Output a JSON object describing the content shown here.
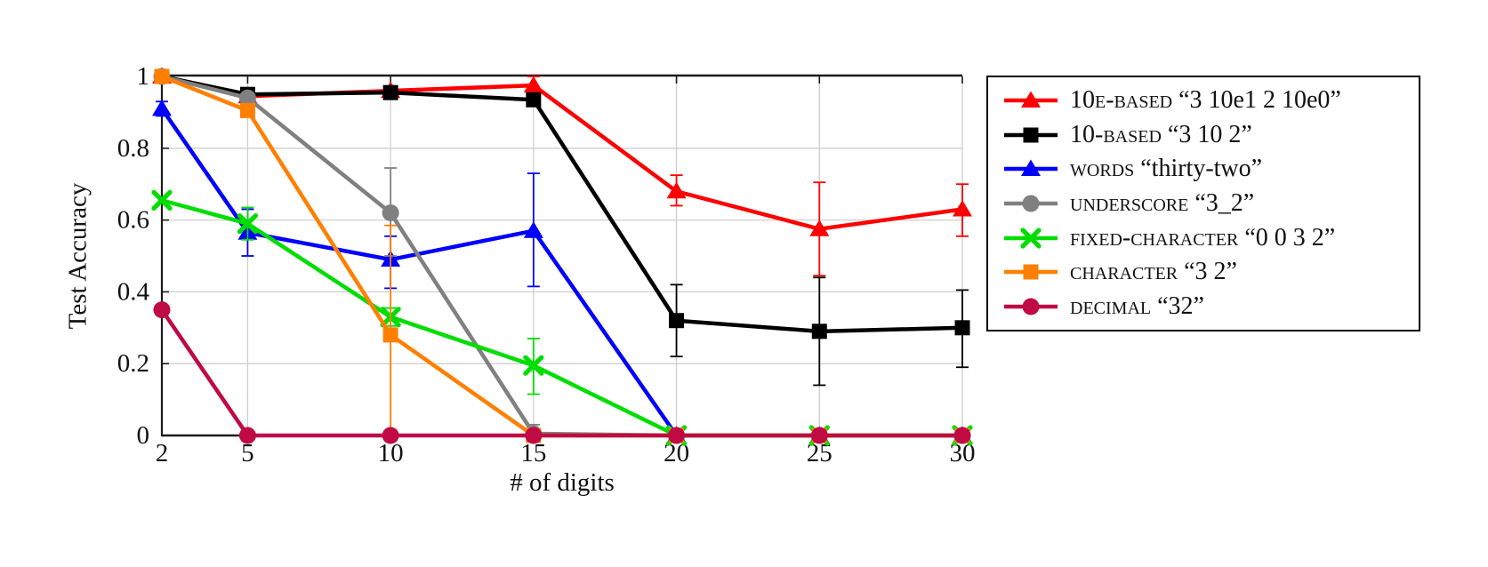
{
  "page": {
    "background": "#ffffff"
  },
  "chart_data": {
    "type": "line",
    "title": "",
    "xlabel": "# of digits",
    "ylabel": "Test Accuracy",
    "x": [
      2,
      5,
      10,
      15,
      20,
      25,
      30
    ],
    "xticks": [
      "2",
      "5",
      "10",
      "15",
      "20",
      "25",
      "30"
    ],
    "xtick_values": [
      2,
      5,
      10,
      15,
      20,
      25,
      30
    ],
    "yticks": [
      "0",
      "0.2",
      "0.4",
      "0.6",
      "0.8",
      "1"
    ],
    "ytick_values": [
      0,
      0.2,
      0.4,
      0.6,
      0.8,
      1
    ],
    "xlim": [
      2,
      30
    ],
    "ylim": [
      0,
      1
    ],
    "grid": "on",
    "grid_color": "#cfcfcf",
    "frame_color": "#1a1a1a",
    "legend_position": "outside right",
    "series": [
      {
        "name": "10e-based",
        "example": "“3 10e1 2 10e0”",
        "color": "#ff0000",
        "marker": "triangle",
        "values": [
          1.0,
          0.945,
          0.96,
          0.975,
          0.68,
          0.575,
          0.63
        ],
        "err_minus": [
          0,
          0,
          0,
          0.02,
          0.04,
          0.13,
          0.075
        ],
        "err_plus": [
          0,
          0,
          0,
          0.025,
          0.045,
          0.13,
          0.07
        ]
      },
      {
        "name": "10-based",
        "example": "“3 10 2”",
        "color": "#000000",
        "marker": "square",
        "values": [
          1.0,
          0.95,
          0.955,
          0.935,
          0.32,
          0.29,
          0.3
        ],
        "err_minus": [
          0,
          0,
          0,
          0,
          0.1,
          0.15,
          0.11
        ],
        "err_plus": [
          0,
          0,
          0,
          0,
          0.1,
          0.15,
          0.105
        ]
      },
      {
        "name": "words",
        "example": "“thirty-two”",
        "color": "#0000ff",
        "marker": "triangle",
        "values": [
          0.91,
          0.565,
          0.49,
          0.57,
          0,
          0,
          0
        ],
        "err_minus": [
          0.02,
          0.065,
          0.08,
          0.155,
          0,
          0,
          0
        ],
        "err_plus": [
          0.02,
          0.065,
          0.065,
          0.16,
          0,
          0,
          0
        ]
      },
      {
        "name": "underscore",
        "example": "“3_2”",
        "color": "#808080",
        "marker": "circle",
        "values": [
          1.0,
          0.94,
          0.62,
          0.005,
          0,
          0,
          0
        ],
        "err_minus": [
          0,
          0,
          0.12,
          0.005,
          0,
          0,
          0
        ],
        "err_plus": [
          0,
          0,
          0.125,
          0.025,
          0,
          0,
          0
        ]
      },
      {
        "name": "fixed-character",
        "example": "“0 0 3 2”",
        "color": "#00dd00",
        "marker": "x",
        "values": [
          0.655,
          0.59,
          0.33,
          0.195,
          0,
          0,
          0
        ],
        "err_minus": [
          0,
          0.045,
          0.025,
          0.08,
          0,
          0,
          0
        ],
        "err_plus": [
          0,
          0.045,
          0.025,
          0.075,
          0,
          0,
          0
        ]
      },
      {
        "name": "character",
        "example": "“3 2”",
        "color": "#ff8000",
        "marker": "square",
        "values": [
          1.0,
          0.905,
          0.28,
          0,
          0,
          0,
          0
        ],
        "err_minus": [
          0,
          0,
          0.28,
          0,
          0,
          0,
          0
        ],
        "err_plus": [
          0,
          0,
          0.305,
          0,
          0,
          0,
          0
        ]
      },
      {
        "name": "decimal",
        "example": "“32”",
        "color": "#c00a44",
        "marker": "circle",
        "values": [
          0.35,
          0,
          0,
          0,
          0,
          0,
          0
        ],
        "err_minus": [
          0,
          0,
          0,
          0,
          0,
          0,
          0
        ],
        "err_plus": [
          0,
          0,
          0,
          0,
          0,
          0,
          0
        ]
      }
    ]
  }
}
